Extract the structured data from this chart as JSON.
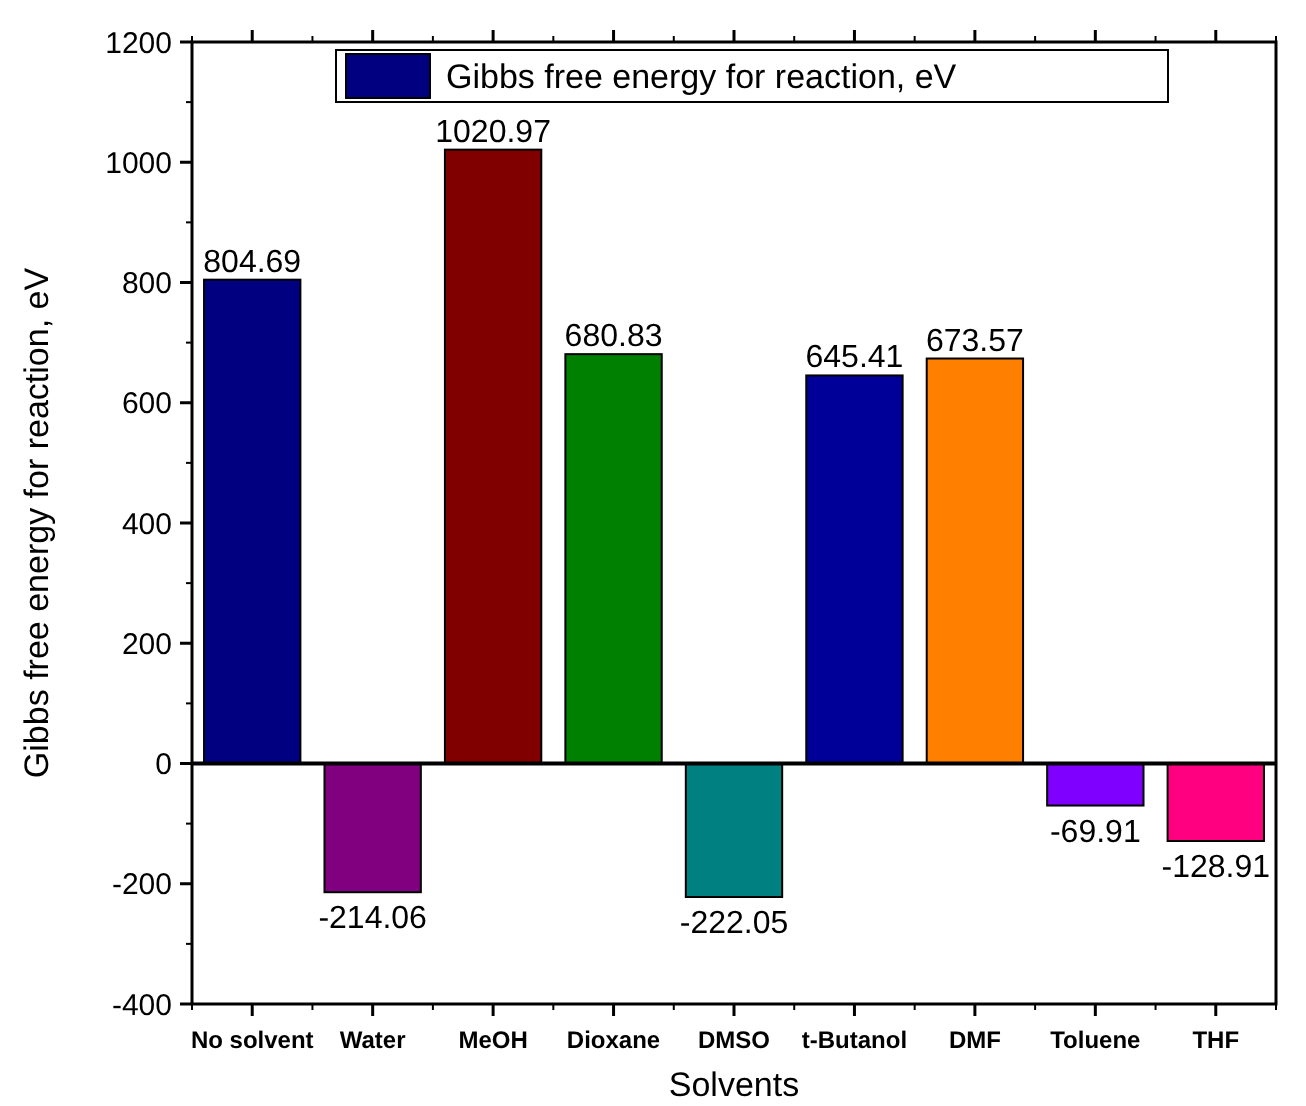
{
  "chart_data": {
    "type": "bar",
    "xlabel": "Solvents",
    "ylabel": "Gibbs free energy for reaction, eV",
    "categories": [
      "No solvent",
      "Water",
      "MeOH",
      "Dioxane",
      "DMSO",
      "t-Butanol",
      "DMF",
      "Toluene",
      "THF"
    ],
    "series": [
      {
        "name": "Gibbs free energy for reaction, eV",
        "color": "#000080",
        "colors": [
          "#000080",
          "#800080",
          "#800000",
          "#008000",
          "#008080",
          "#000099",
          "#ff8000",
          "#8000ff",
          "#ff0080"
        ],
        "values": [
          804.69,
          -214.06,
          1020.97,
          680.83,
          -222.05,
          645.41,
          673.57,
          -69.91,
          -128.91
        ]
      }
    ],
    "ylim": [
      -400,
      1200
    ],
    "yticks": [
      -400,
      -200,
      0,
      200,
      400,
      600,
      800,
      1000,
      1200
    ],
    "ref_lines": [
      {
        "axis": "y",
        "value": 0
      }
    ],
    "data_labels": true,
    "legend": "top",
    "grid": false
  }
}
